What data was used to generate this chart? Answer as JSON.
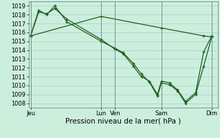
{
  "background_color": "#cceedd",
  "grid_color": "#aacccc",
  "line_color": "#1a5c1a",
  "yticks": [
    1008,
    1009,
    1010,
    1011,
    1012,
    1013,
    1014,
    1015,
    1016,
    1017,
    1018,
    1019
  ],
  "xlabel": "Pression niveau de la mer( hPa )",
  "day_labels": [
    "Jeu",
    "Lun",
    "Ven",
    "Sam",
    "Dim"
  ],
  "day_positions": [
    0.0,
    3.5,
    4.2,
    6.5,
    9.0
  ],
  "vline_positions": [
    0.0,
    3.5,
    4.2,
    6.5,
    9.0
  ],
  "series1_x": [
    0.0,
    0.4,
    0.8,
    1.2,
    1.8,
    3.5,
    4.2,
    4.6,
    5.1,
    5.5,
    5.9,
    6.3,
    6.5,
    6.9,
    7.3,
    7.7,
    8.2,
    8.6,
    9.0
  ],
  "series1_y": [
    1015.6,
    1018.3,
    1018.1,
    1018.7,
    1017.5,
    1015.2,
    1014.1,
    1013.6,
    1012.2,
    1011.0,
    1010.5,
    1009.0,
    1010.5,
    1010.3,
    1009.5,
    1008.2,
    1009.2,
    1013.8,
    1015.6
  ],
  "series2_x": [
    0.0,
    0.4,
    0.8,
    1.2,
    1.8,
    3.5,
    4.2,
    4.6,
    5.1,
    5.5,
    5.9,
    6.3,
    6.5,
    6.9,
    7.3,
    7.7,
    8.2,
    8.6,
    9.0
  ],
  "series2_y": [
    1015.6,
    1018.5,
    1018.0,
    1019.0,
    1017.2,
    1015.0,
    1014.2,
    1013.7,
    1012.5,
    1011.3,
    1010.4,
    1008.8,
    1010.3,
    1010.1,
    1009.4,
    1008.0,
    1009.0,
    1012.2,
    1015.5
  ],
  "series3_x": [
    0.0,
    3.5,
    6.5,
    8.6,
    9.0
  ],
  "series3_y": [
    1015.6,
    1017.8,
    1016.5,
    1015.6,
    1015.5
  ],
  "xmin": -0.1,
  "xmax": 9.3,
  "ymin": 1007.5,
  "ymax": 1019.5,
  "tick_fontsize": 6.0,
  "label_fontsize": 7.5
}
